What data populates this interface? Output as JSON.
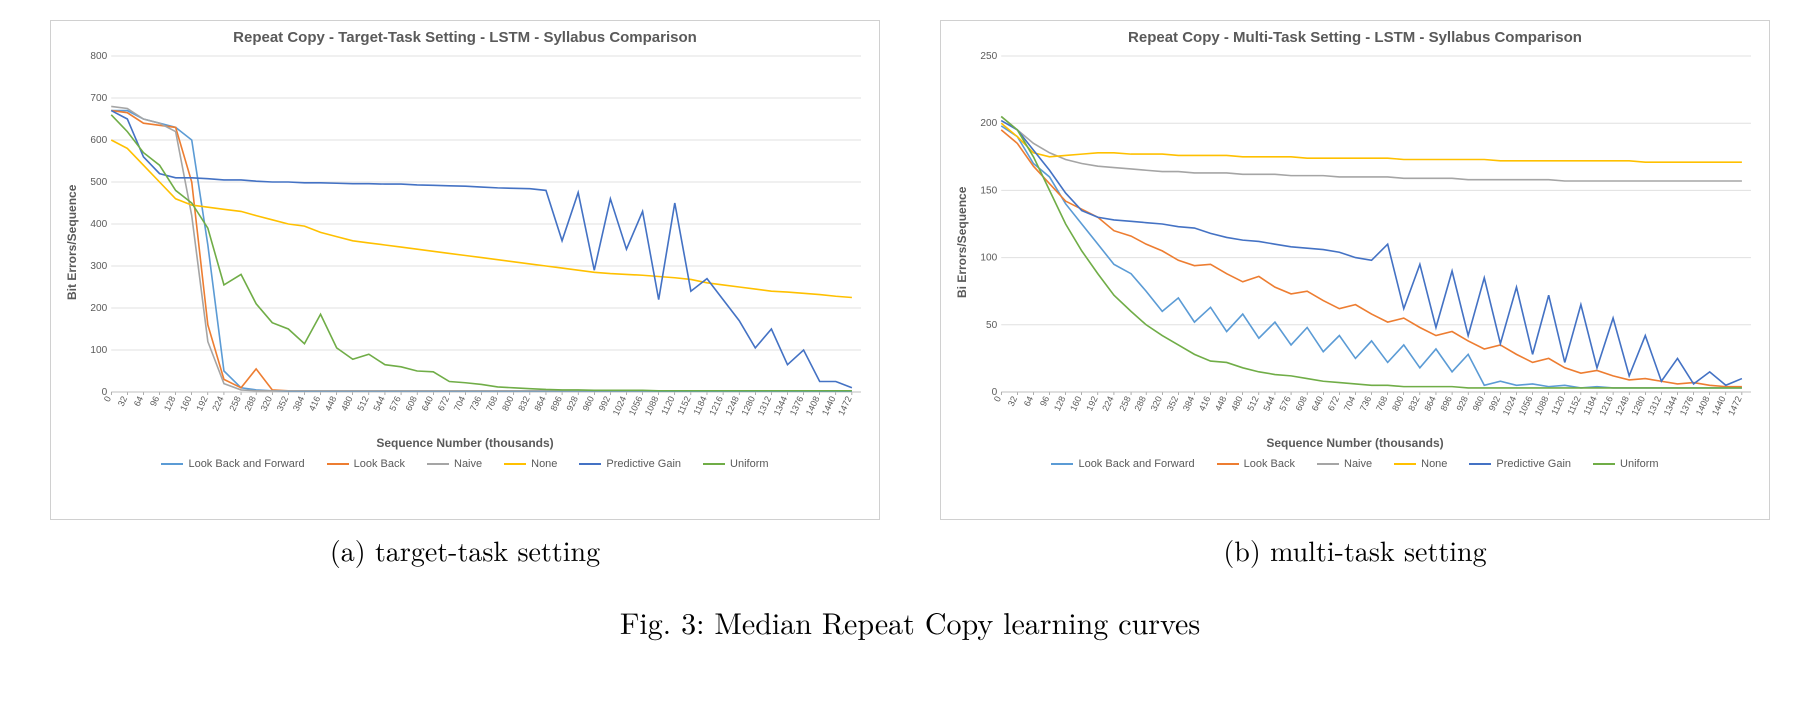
{
  "figure_caption": "Fig. 3: Median Repeat Copy learning curves",
  "background_color": "#ffffff",
  "grid_color": "#e0e0e0",
  "axis_color": "#bfbfbf",
  "tick_color": "#5a5a5a",
  "line_width": 1.6,
  "series_meta": [
    {
      "key": "look_back_forward",
      "label": "Look Back and Forward",
      "color": "#5b9bd5"
    },
    {
      "key": "look_back",
      "label": "Look Back",
      "color": "#ed7d31"
    },
    {
      "key": "naive",
      "label": "Naive",
      "color": "#a5a5a5"
    },
    {
      "key": "none",
      "label": "None",
      "color": "#ffc000"
    },
    {
      "key": "predictive_gain",
      "label": "Predictive Gain",
      "color": "#4472c4"
    },
    {
      "key": "uniform",
      "label": "Uniform",
      "color": "#70ad47"
    }
  ],
  "x_ticks": [
    0,
    32,
    64,
    96,
    128,
    160,
    192,
    224,
    258,
    288,
    320,
    352,
    384,
    416,
    448,
    480,
    512,
    544,
    576,
    608,
    640,
    672,
    704,
    736,
    768,
    800,
    832,
    864,
    896,
    928,
    960,
    992,
    1024,
    1056,
    1088,
    1120,
    1152,
    1184,
    1216,
    1248,
    1280,
    1312,
    1344,
    1376,
    1408,
    1440,
    1472
  ],
  "charts": [
    {
      "id": "target",
      "title": "Repeat Copy - Target-Task Setting - LSTM - Syllabus Comparison",
      "subcaption": "(a) target-task setting",
      "xlabel": "Sequence Number (thousands)",
      "ylabel": "Bit Errors/Sequence",
      "xlim": [
        0,
        1490
      ],
      "ylim": [
        0,
        800
      ],
      "ytick_step": 100,
      "series": {
        "look_back_forward": [
          670,
          670,
          650,
          640,
          630,
          600,
          350,
          50,
          10,
          5,
          3,
          2,
          2,
          2,
          2,
          2,
          2,
          2,
          2,
          2,
          2,
          2,
          2,
          2,
          2,
          2,
          2,
          2,
          2,
          2,
          2,
          2,
          2,
          2,
          2,
          2,
          2,
          2,
          2,
          2,
          2,
          2,
          2,
          2,
          2,
          2,
          2
        ],
        "look_back": [
          670,
          665,
          640,
          635,
          630,
          500,
          160,
          30,
          10,
          55,
          5,
          3,
          3,
          3,
          3,
          3,
          3,
          3,
          3,
          3,
          3,
          3,
          3,
          3,
          3,
          3,
          3,
          3,
          3,
          3,
          3,
          3,
          3,
          3,
          3,
          3,
          3,
          3,
          3,
          3,
          3,
          3,
          3,
          3,
          3,
          3,
          3
        ],
        "naive": [
          680,
          675,
          650,
          640,
          620,
          420,
          120,
          20,
          5,
          3,
          3,
          3,
          3,
          3,
          3,
          3,
          3,
          3,
          3,
          3,
          3,
          3,
          3,
          3,
          3,
          3,
          3,
          3,
          3,
          3,
          3,
          3,
          3,
          3,
          3,
          3,
          3,
          3,
          3,
          3,
          3,
          3,
          3,
          3,
          3,
          3,
          3
        ],
        "none": [
          600,
          580,
          540,
          500,
          460,
          445,
          440,
          435,
          430,
          420,
          410,
          400,
          395,
          380,
          370,
          360,
          355,
          350,
          345,
          340,
          335,
          330,
          325,
          320,
          315,
          310,
          305,
          300,
          295,
          290,
          285,
          282,
          280,
          278,
          275,
          272,
          268,
          260,
          255,
          250,
          245,
          240,
          238,
          235,
          232,
          228,
          225
        ],
        "predictive_gain": [
          670,
          650,
          560,
          520,
          510,
          510,
          508,
          505,
          505,
          502,
          500,
          500,
          498,
          498,
          497,
          496,
          496,
          495,
          495,
          493,
          492,
          491,
          490,
          488,
          486,
          485,
          484,
          480,
          360,
          475,
          290,
          460,
          340,
          430,
          220,
          450,
          240,
          270,
          220,
          170,
          105,
          150,
          65,
          100,
          25,
          25,
          10
        ],
        "uniform": [
          660,
          620,
          570,
          540,
          480,
          450,
          390,
          255,
          280,
          210,
          165,
          150,
          115,
          185,
          105,
          78,
          90,
          65,
          60,
          50,
          48,
          25,
          22,
          18,
          12,
          10,
          8,
          6,
          5,
          5,
          4,
          4,
          4,
          4,
          3,
          3,
          3,
          3,
          3,
          3,
          3,
          3,
          3,
          3,
          3,
          3,
          3
        ]
      }
    },
    {
      "id": "multi",
      "title": "Repeat Copy - Multi-Task Setting - LSTM - Syllabus Comparison",
      "subcaption": "(b) multi-task setting",
      "xlabel": "Sequence Number (thousands)",
      "ylabel": "Bi Errors/Sequence",
      "xlim": [
        0,
        1490
      ],
      "ylim": [
        0,
        250
      ],
      "ytick_step": 50,
      "series": {
        "look_back_forward": [
          198,
          190,
          170,
          160,
          140,
          125,
          110,
          95,
          88,
          75,
          60,
          70,
          52,
          63,
          45,
          58,
          40,
          52,
          35,
          48,
          30,
          42,
          25,
          38,
          22,
          35,
          18,
          32,
          15,
          28,
          5,
          8,
          5,
          6,
          4,
          5,
          3,
          4,
          3,
          3,
          3,
          3,
          3,
          3,
          3,
          3,
          3
        ],
        "look_back": [
          195,
          185,
          168,
          155,
          142,
          136,
          130,
          120,
          116,
          110,
          105,
          98,
          94,
          95,
          88,
          82,
          86,
          78,
          73,
          75,
          68,
          62,
          65,
          58,
          52,
          55,
          48,
          42,
          45,
          38,
          32,
          35,
          28,
          22,
          25,
          18,
          14,
          16,
          12,
          9,
          10,
          8,
          6,
          7,
          5,
          4,
          4
        ],
        "naive": [
          205,
          195,
          185,
          178,
          173,
          170,
          168,
          167,
          166,
          165,
          164,
          164,
          163,
          163,
          163,
          162,
          162,
          162,
          161,
          161,
          161,
          160,
          160,
          160,
          160,
          159,
          159,
          159,
          159,
          158,
          158,
          158,
          158,
          158,
          158,
          157,
          157,
          157,
          157,
          157,
          157,
          157,
          157,
          157,
          157,
          157,
          157
        ],
        "none": [
          200,
          190,
          178,
          175,
          176,
          177,
          178,
          178,
          177,
          177,
          177,
          176,
          176,
          176,
          176,
          175,
          175,
          175,
          175,
          174,
          174,
          174,
          174,
          174,
          174,
          173,
          173,
          173,
          173,
          173,
          173,
          172,
          172,
          172,
          172,
          172,
          172,
          172,
          172,
          172,
          171,
          171,
          171,
          171,
          171,
          171,
          171
        ],
        "predictive_gain": [
          202,
          195,
          180,
          165,
          148,
          135,
          130,
          128,
          127,
          126,
          125,
          123,
          122,
          118,
          115,
          113,
          112,
          110,
          108,
          107,
          106,
          104,
          100,
          98,
          110,
          62,
          95,
          48,
          90,
          42,
          85,
          36,
          78,
          28,
          72,
          22,
          65,
          18,
          55,
          12,
          42,
          8,
          25,
          6,
          15,
          5,
          10
        ],
        "uniform": [
          205,
          195,
          175,
          150,
          125,
          105,
          88,
          72,
          60,
          50,
          42,
          35,
          28,
          23,
          22,
          18,
          15,
          13,
          12,
          10,
          8,
          7,
          6,
          5,
          5,
          4,
          4,
          4,
          4,
          3,
          3,
          3,
          3,
          3,
          3,
          3,
          3,
          3,
          3,
          3,
          3,
          3,
          3,
          3,
          3,
          3,
          3
        ]
      }
    }
  ]
}
